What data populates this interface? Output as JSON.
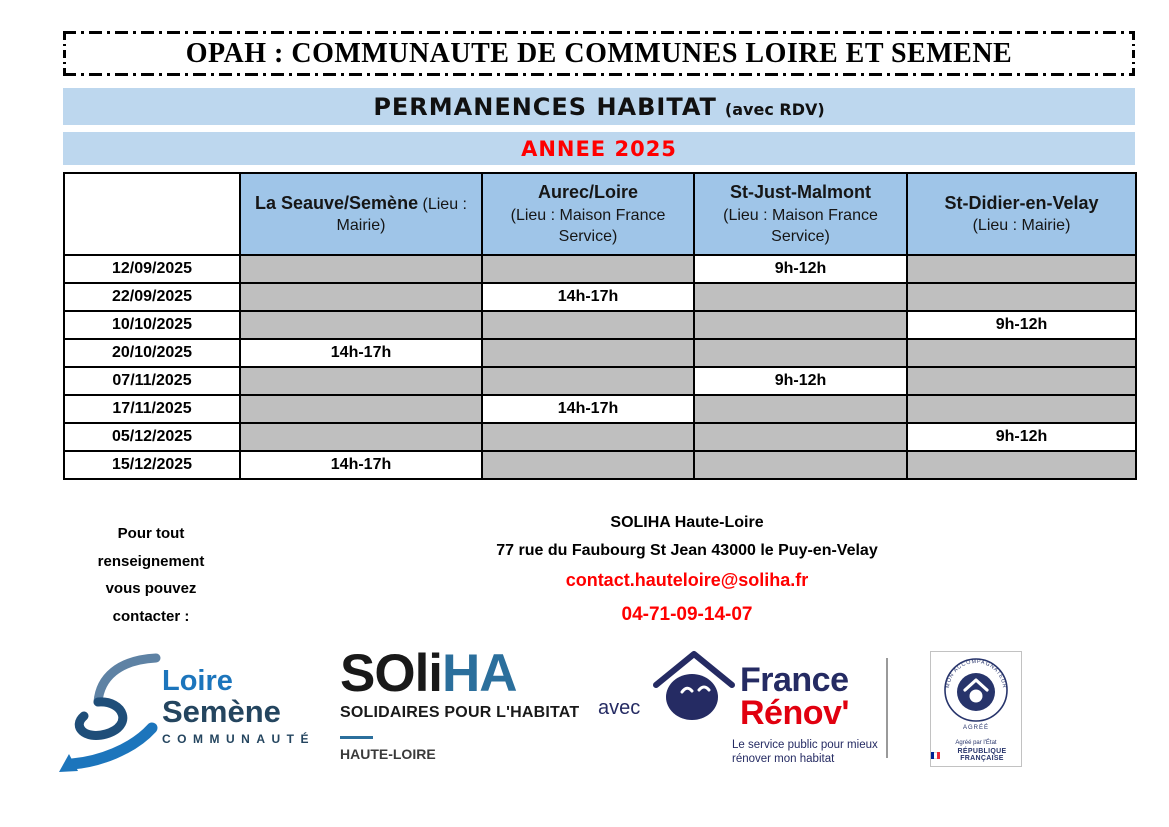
{
  "title": "OPAH : COMMUNAUTE DE COMMUNES LOIRE ET SEMENE",
  "banners": {
    "main": "PERMANENCES HABITAT",
    "main_suffix": "(avec RDV)",
    "year": "ANNEE 2025"
  },
  "colors": {
    "banner_bg": "#BDD7EE",
    "table_header_bg": "#9FC5E8",
    "empty_cell_bg": "#BFBFBF",
    "accent_red": "#FF0000",
    "renov_navy": "#252B63",
    "renov_red": "#E1000F",
    "soliha_blue": "#2B6F9C",
    "loire_semene_blue": "#1C75BC",
    "loire_semene_navy": "#24455F"
  },
  "schedule": {
    "columns": [
      {
        "name": "La Seauve/Semène",
        "location": "(Lieu : Mairie)"
      },
      {
        "name": "Aurec/Loire",
        "location": "(Lieu : Maison France Service)"
      },
      {
        "name": "St-Just-Malmont",
        "location": "(Lieu : Maison France Service)"
      },
      {
        "name": "St-Didier-en-Velay",
        "location": "(Lieu : Mairie)"
      }
    ],
    "rows": [
      {
        "date": "12/09/2025",
        "times": [
          "",
          "",
          "9h-12h",
          ""
        ]
      },
      {
        "date": "22/09/2025",
        "times": [
          "",
          "14h-17h",
          "",
          ""
        ]
      },
      {
        "date": "10/10/2025",
        "times": [
          "",
          "",
          "",
          "9h-12h"
        ]
      },
      {
        "date": "20/10/2025",
        "times": [
          "14h-17h",
          "",
          "",
          ""
        ]
      },
      {
        "date": "07/11/2025",
        "times": [
          "",
          "",
          "9h-12h",
          ""
        ]
      },
      {
        "date": "17/11/2025",
        "times": [
          "",
          "14h-17h",
          "",
          ""
        ]
      },
      {
        "date": "05/12/2025",
        "times": [
          "",
          "",
          "",
          "9h-12h"
        ]
      },
      {
        "date": "15/12/2025",
        "times": [
          "14h-17h",
          "",
          "",
          ""
        ]
      }
    ]
  },
  "contact": {
    "intro_lines": [
      "Pour tout",
      "renseignement",
      "vous pouvez",
      "contacter :"
    ],
    "org": "SOLIHA Haute-Loire",
    "address": "77 rue du Faubourg St Jean 43000 le Puy-en-Velay",
    "email": "contact.hauteloire@soliha.fr",
    "phone": "04-71-09-14-07"
  },
  "logos": {
    "loire_semene": {
      "line1": "Loire",
      "line2": "Semène",
      "line3": "COMMUNAUTÉ"
    },
    "soliha": {
      "word_black": "SOli",
      "word_blue": "HA",
      "tagline": "SOLIDAIRES POUR L'HABITAT",
      "region": "HAUTE-LOIRE"
    },
    "avec_label": "avec",
    "france_renov": {
      "line1": "France",
      "line2": "Rénov'",
      "tagline_line1": "Le service public pour mieux",
      "tagline_line2": "rénover mon habitat"
    },
    "mar_badge": {
      "seal_text": "MON ACCOMPAGNATEUR RÉNOV'",
      "seal_sub": "AGRÉÉ",
      "line1": "Agréé par l'État",
      "line2": "RÉPUBLIQUE FRANÇAISE"
    }
  }
}
